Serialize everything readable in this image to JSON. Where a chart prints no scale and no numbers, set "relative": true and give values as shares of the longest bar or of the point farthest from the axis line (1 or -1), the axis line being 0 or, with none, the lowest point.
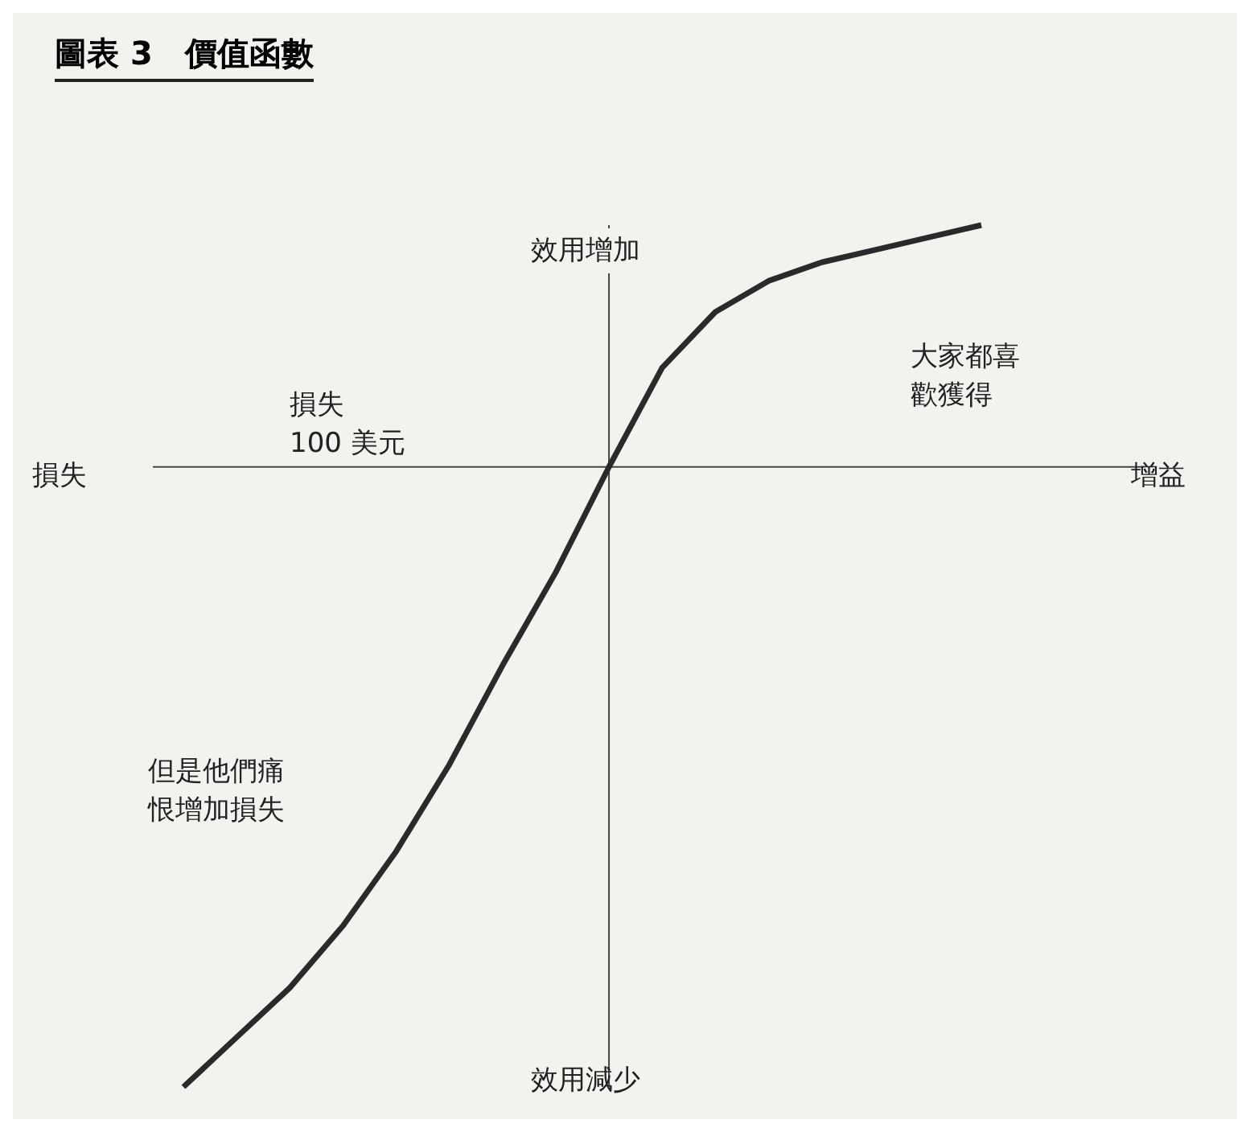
{
  "chart_data": {
    "type": "line",
    "title": "圖表 3　價值函數",
    "relative": true,
    "categories": [
      null,
      null,
      null,
      null,
      null,
      null,
      null,
      null,
      null,
      null,
      null,
      null,
      null,
      null,
      null,
      null
    ],
    "series": [
      {
        "color": "#2a2a2a",
        "values": [
          -1.0,
          -0.92,
          -0.84,
          -0.74,
          -0.62,
          -0.48,
          -0.32,
          -0.17,
          0,
          0.16,
          0.25,
          0.3,
          0.33,
          0.35,
          0.37,
          0.39
        ]
      }
    ],
    "xlabel": "增益",
    "ylabel": "效用增加",
    "annotations": [
      "損失",
      "效用減少",
      "損失\n100 美元",
      "大家都喜歡獲得",
      "但是他們痛恨增加損失"
    ],
    "marker": "none",
    "line_style": "solid",
    "grid": false,
    "legend": false
  }
}
